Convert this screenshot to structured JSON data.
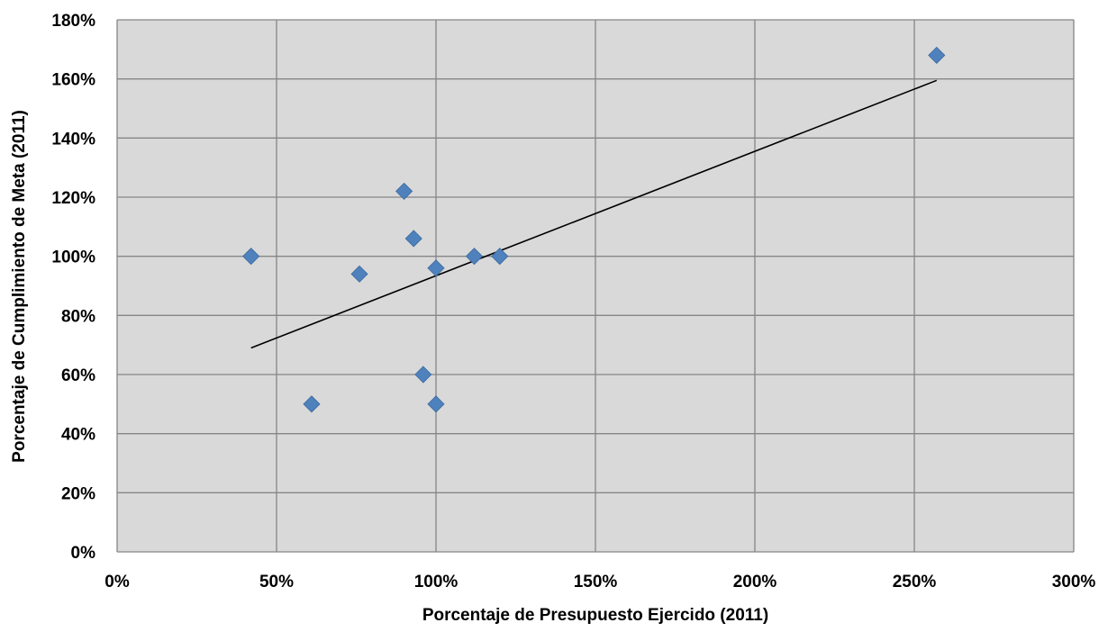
{
  "chart_data": {
    "type": "scatter",
    "title": "",
    "xlabel": "Porcentaje de Presupuesto Ejercido (2011)",
    "ylabel": "Porcentaje de Cumplimiento de Meta (2011)",
    "xlim": [
      0,
      300
    ],
    "ylim": [
      0,
      180
    ],
    "x_ticks": [
      0,
      50,
      100,
      150,
      200,
      250,
      300
    ],
    "y_ticks": [
      0,
      20,
      40,
      60,
      80,
      100,
      120,
      140,
      160,
      180
    ],
    "x_tick_labels": [
      "0%",
      "50%",
      "100%",
      "150%",
      "200%",
      "250%",
      "300%"
    ],
    "y_tick_labels": [
      "0%",
      "20%",
      "40%",
      "60%",
      "80%",
      "100%",
      "120%",
      "140%",
      "160%",
      "180%"
    ],
    "grid": true,
    "legend": "none",
    "series": [
      {
        "marker": "diamond",
        "color": "#4f81bd",
        "points": [
          {
            "x": 42,
            "y": 100
          },
          {
            "x": 61,
            "y": 50
          },
          {
            "x": 76,
            "y": 94
          },
          {
            "x": 90,
            "y": 122
          },
          {
            "x": 93,
            "y": 106
          },
          {
            "x": 96,
            "y": 60
          },
          {
            "x": 100,
            "y": 96
          },
          {
            "x": 100,
            "y": 50
          },
          {
            "x": 112,
            "y": 100
          },
          {
            "x": 120,
            "y": 100
          },
          {
            "x": 257,
            "y": 168
          }
        ]
      }
    ],
    "trendline": {
      "type": "linear",
      "color": "#000000",
      "start": {
        "x": 42,
        "y": 69
      },
      "end": {
        "x": 257,
        "y": 159.5
      }
    },
    "colors": {
      "plot_background": "#d9d9d9",
      "grid": "#868686",
      "marker": "#4f81bd"
    }
  }
}
